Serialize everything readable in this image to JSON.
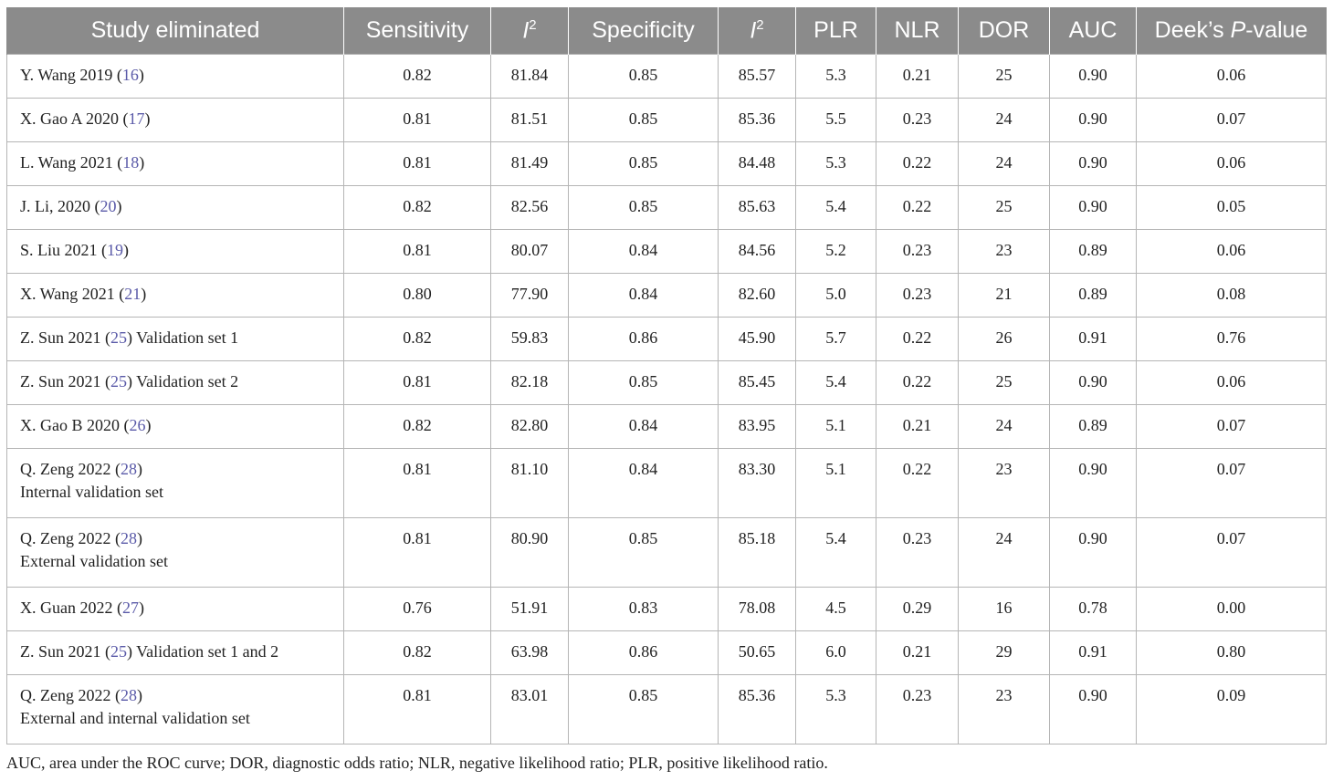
{
  "table": {
    "headers": {
      "study": "Study eliminated",
      "sensitivity": "Sensitivity",
      "i2_a_base": "I",
      "i2_a_sup": "2",
      "specificity": "Specificity",
      "i2_b_base": "I",
      "i2_b_sup": "2",
      "plr": "PLR",
      "nlr": "NLR",
      "dor": "DOR",
      "auc": "AUC",
      "deek_pre": "Deek’s ",
      "deek_p": "P",
      "deek_post": "-value"
    },
    "rows": [
      {
        "pre": "Y. Wang 2019 (",
        "ref": "16",
        "post": ")",
        "line2": "",
        "sens": "0.82",
        "i2a": "81.84",
        "spec": "0.85",
        "i2b": "85.57",
        "plr": "5.3",
        "nlr": "0.21",
        "dor": "25",
        "auc": "0.90",
        "deek": "0.06"
      },
      {
        "pre": "X. Gao A 2020 (",
        "ref": "17",
        "post": ")",
        "line2": "",
        "sens": "0.81",
        "i2a": "81.51",
        "spec": "0.85",
        "i2b": "85.36",
        "plr": "5.5",
        "nlr": "0.23",
        "dor": "24",
        "auc": "0.90",
        "deek": "0.07"
      },
      {
        "pre": "L. Wang 2021 (",
        "ref": "18",
        "post": ")",
        "line2": "",
        "sens": "0.81",
        "i2a": "81.49",
        "spec": "0.85",
        "i2b": "84.48",
        "plr": "5.3",
        "nlr": "0.22",
        "dor": "24",
        "auc": "0.90",
        "deek": "0.06"
      },
      {
        "pre": "J. Li, 2020 (",
        "ref": "20",
        "post": ")",
        "line2": "",
        "sens": "0.82",
        "i2a": "82.56",
        "spec": "0.85",
        "i2b": "85.63",
        "plr": "5.4",
        "nlr": "0.22",
        "dor": "25",
        "auc": "0.90",
        "deek": "0.05"
      },
      {
        "pre": "S. Liu 2021 (",
        "ref": "19",
        "post": ")",
        "line2": "",
        "sens": "0.81",
        "i2a": "80.07",
        "spec": "0.84",
        "i2b": "84.56",
        "plr": "5.2",
        "nlr": "0.23",
        "dor": "23",
        "auc": "0.89",
        "deek": "0.06"
      },
      {
        "pre": "X. Wang 2021 (",
        "ref": "21",
        "post": ")",
        "line2": "",
        "sens": "0.80",
        "i2a": "77.90",
        "spec": "0.84",
        "i2b": "82.60",
        "plr": "5.0",
        "nlr": "0.23",
        "dor": "21",
        "auc": "0.89",
        "deek": "0.08"
      },
      {
        "pre": "Z. Sun 2021 (",
        "ref": "25",
        "post": ") Validation set 1",
        "line2": "",
        "sens": "0.82",
        "i2a": "59.83",
        "spec": "0.86",
        "i2b": "45.90",
        "plr": "5.7",
        "nlr": "0.22",
        "dor": "26",
        "auc": "0.91",
        "deek": "0.76"
      },
      {
        "pre": "Z. Sun 2021 (",
        "ref": "25",
        "post": ") Validation set 2",
        "line2": "",
        "sens": "0.81",
        "i2a": "82.18",
        "spec": "0.85",
        "i2b": "85.45",
        "plr": "5.4",
        "nlr": "0.22",
        "dor": "25",
        "auc": "0.90",
        "deek": "0.06"
      },
      {
        "pre": "X. Gao B 2020 (",
        "ref": "26",
        "post": ")",
        "line2": "",
        "sens": "0.82",
        "i2a": "82.80",
        "spec": "0.84",
        "i2b": "83.95",
        "plr": "5.1",
        "nlr": "0.21",
        "dor": "24",
        "auc": "0.89",
        "deek": "0.07"
      },
      {
        "pre": "Q. Zeng 2022 (",
        "ref": "28",
        "post": ")",
        "line2": "Internal validation set",
        "sens": "0.81",
        "i2a": "81.10",
        "spec": "0.84",
        "i2b": "83.30",
        "plr": "5.1",
        "nlr": "0.22",
        "dor": "23",
        "auc": "0.90",
        "deek": "0.07"
      },
      {
        "pre": "Q. Zeng 2022 (",
        "ref": "28",
        "post": ")",
        "line2": "External validation set",
        "sens": "0.81",
        "i2a": "80.90",
        "spec": "0.85",
        "i2b": "85.18",
        "plr": "5.4",
        "nlr": "0.23",
        "dor": "24",
        "auc": "0.90",
        "deek": "0.07"
      },
      {
        "pre": "X. Guan 2022 (",
        "ref": "27",
        "post": ")",
        "line2": "",
        "sens": "0.76",
        "i2a": "51.91",
        "spec": "0.83",
        "i2b": "78.08",
        "plr": "4.5",
        "nlr": "0.29",
        "dor": "16",
        "auc": "0.78",
        "deek": "0.00"
      },
      {
        "pre": "Z. Sun 2021 (",
        "ref": "25",
        "post": ") Validation set 1 and 2",
        "line2": "",
        "sens": "0.82",
        "i2a": "63.98",
        "spec": "0.86",
        "i2b": "50.65",
        "plr": "6.0",
        "nlr": "0.21",
        "dor": "29",
        "auc": "0.91",
        "deek": "0.80"
      },
      {
        "pre": "Q. Zeng 2022 (",
        "ref": "28",
        "post": ")",
        "line2": "External and internal validation set",
        "sens": "0.81",
        "i2a": "83.01",
        "spec": "0.85",
        "i2b": "85.36",
        "plr": "5.3",
        "nlr": "0.23",
        "dor": "23",
        "auc": "0.90",
        "deek": "0.09"
      }
    ]
  },
  "footnote": "AUC, area under the ROC curve; DOR, diagnostic odds ratio; NLR, negative likelihood ratio; PLR, positive likelihood ratio.",
  "colors": {
    "header_bg": "#8b8b8b",
    "header_text": "#ffffff",
    "ref_link": "#5a5aa8",
    "grid_line": "#b5b5b5"
  }
}
